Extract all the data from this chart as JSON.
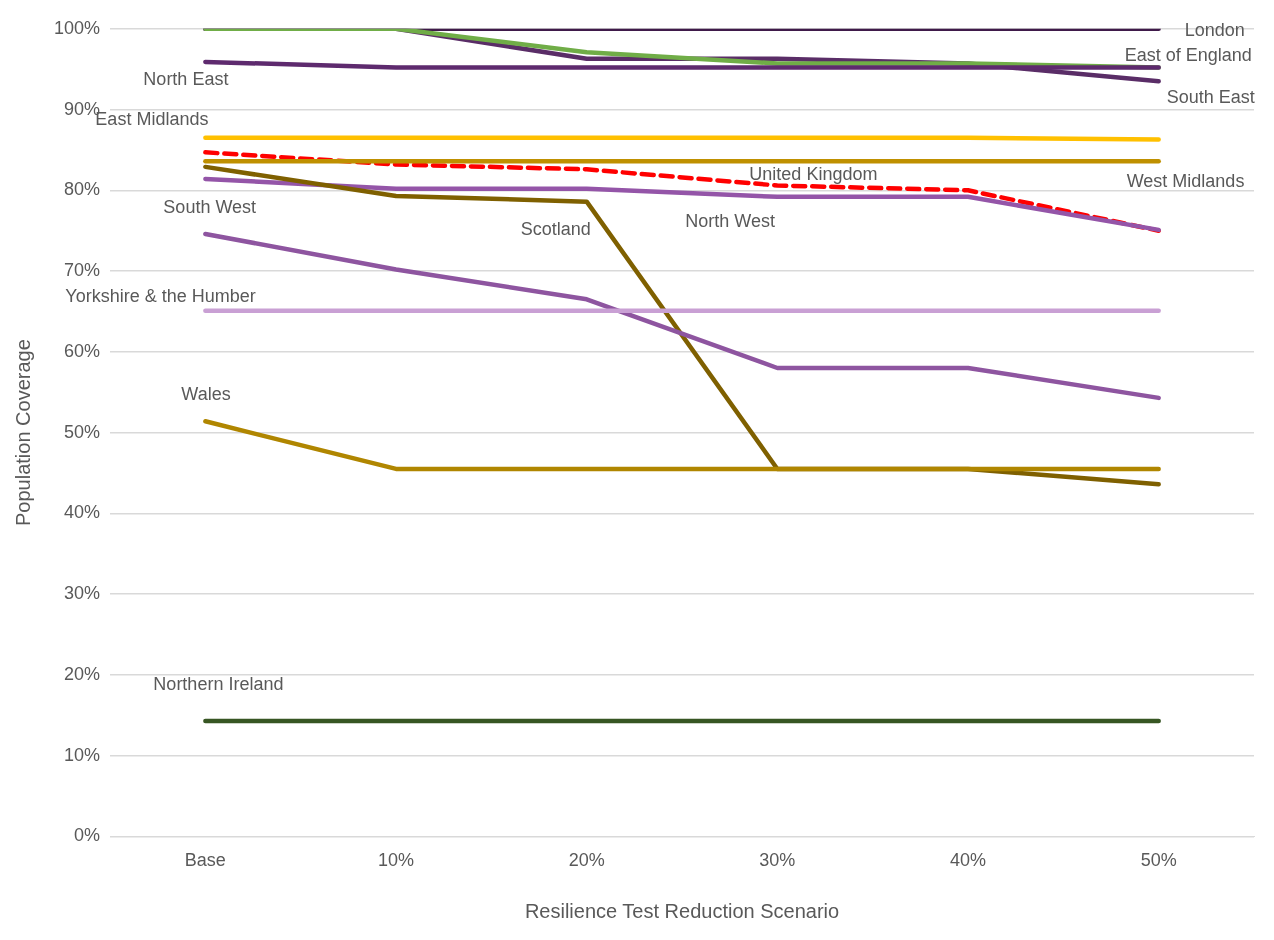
{
  "chart_data": {
    "type": "line",
    "xlabel": "Resilience Test Reduction Scenario",
    "ylabel": "Population Coverage",
    "categories": [
      "Base",
      "10%",
      "20%",
      "30%",
      "40%",
      "50%"
    ],
    "ylim": [
      0,
      100
    ],
    "yticks": [
      {
        "value": 0,
        "label": "0%"
      },
      {
        "value": 10,
        "label": "10%"
      },
      {
        "value": 20,
        "label": "20%"
      },
      {
        "value": 30,
        "label": "30%"
      },
      {
        "value": 40,
        "label": "40%"
      },
      {
        "value": 50,
        "label": "50%"
      },
      {
        "value": 60,
        "label": "60%"
      },
      {
        "value": 70,
        "label": "70%"
      },
      {
        "value": 80,
        "label": "80%"
      },
      {
        "value": 90,
        "label": "90%"
      },
      {
        "value": 100,
        "label": "100%"
      }
    ],
    "grid": "y",
    "legend": false,
    "marker": "none",
    "series": [
      {
        "name": "Northern Ireland",
        "color": "#375623",
        "values": [
          14.3,
          14.3,
          14.3,
          14.3,
          14.3,
          14.3
        ]
      },
      {
        "name": "Wales",
        "color": "#b08600",
        "values": [
          51.4,
          45.5,
          45.5,
          45.5,
          45.5,
          45.5
        ]
      },
      {
        "name": "Yorkshire & the Humber",
        "color": "#c9a0d4",
        "values": [
          65.1,
          65.1,
          65.1,
          65.1,
          65.1,
          65.1
        ]
      },
      {
        "name": "South West",
        "color": "#8e55a0",
        "values": [
          74.6,
          70.2,
          66.5,
          58.0,
          58.0,
          54.3
        ]
      },
      {
        "name": "Scotland",
        "color": "#7f6000",
        "values": [
          82.9,
          79.3,
          78.6,
          45.5,
          45.5,
          43.6
        ]
      },
      {
        "name": "North West",
        "color": "#9455a8",
        "values": [
          81.4,
          80.2,
          80.2,
          79.2,
          79.2,
          75.1
        ]
      },
      {
        "name": "West Midlands",
        "color": "#bf9000",
        "values": [
          83.6,
          83.6,
          83.6,
          83.6,
          83.6,
          83.6
        ]
      },
      {
        "name": "East Midlands",
        "color": "#ffc000",
        "values": [
          86.5,
          86.5,
          86.5,
          86.5,
          86.5,
          86.3
        ]
      },
      {
        "name": "United Kingdom",
        "color": "#ff0000",
        "line_style": "dashed",
        "values": [
          84.7,
          83.2,
          82.6,
          80.6,
          80.0,
          75.0
        ]
      },
      {
        "name": "North East",
        "color": "#5e2a6e",
        "values": [
          95.9,
          95.2,
          95.2,
          95.2,
          95.2,
          95.2
        ]
      },
      {
        "name": "East of England",
        "color": "#70ad47",
        "values": [
          100,
          100,
          97.1,
          95.7,
          95.7,
          95.2
        ]
      },
      {
        "name": "South East",
        "color": "#5a2d67",
        "values": [
          100,
          100,
          96.3,
          96.3,
          95.7,
          93.5
        ]
      },
      {
        "name": "London",
        "color": "#3f1a4a",
        "values": [
          100,
          100,
          100,
          100,
          100,
          100
        ]
      }
    ]
  }
}
